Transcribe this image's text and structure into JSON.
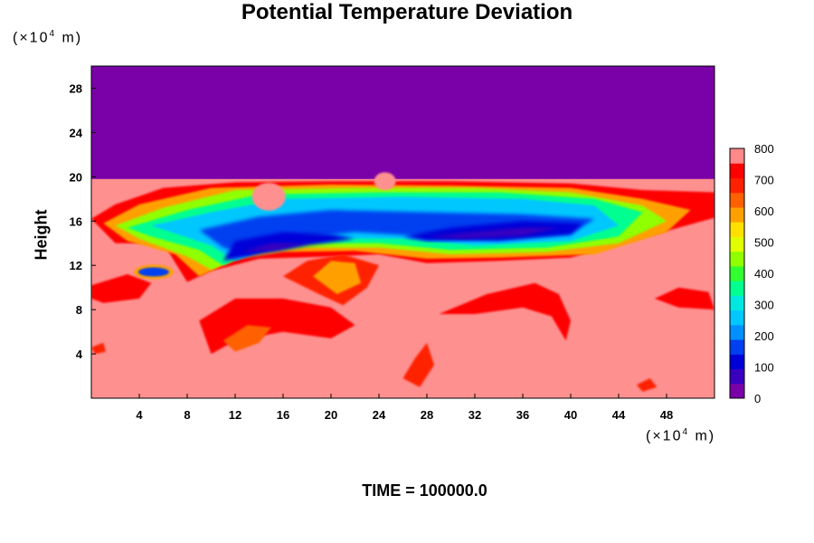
{
  "chart_data": {
    "type": "heatmap",
    "title": "Potential Temperature Deviation",
    "ylabel": "Height",
    "xlabel": "",
    "x_unit": "(×10",
    "x_unit_exp": "4",
    "x_unit_tail": " m)",
    "y_unit": "(×10",
    "y_unit_exp": "4",
    "y_unit_tail": " m)",
    "xlim": [
      0,
      52
    ],
    "ylim": [
      0,
      30
    ],
    "x_ticks": [
      4,
      8,
      12,
      16,
      20,
      24,
      28,
      32,
      36,
      40,
      44,
      48
    ],
    "y_ticks": [
      4,
      8,
      12,
      16,
      20,
      24,
      28
    ],
    "colorbar": {
      "range": [
        0,
        800
      ],
      "labels": [
        0,
        100,
        200,
        300,
        400,
        500,
        600,
        700,
        800
      ],
      "colors": [
        "#7a00a8",
        "#3a00c0",
        "#0000d8",
        "#0040f0",
        "#0090ff",
        "#00c8ff",
        "#00e8e0",
        "#00ff90",
        "#30ff30",
        "#90ff00",
        "#e0ff00",
        "#ffe000",
        "#ffa000",
        "#ff6000",
        "#ff2000",
        "#ff0000",
        "#ff8888"
      ]
    },
    "regions": {
      "top_layer_color": "#7a00a8",
      "background_color": "#ff9090",
      "top_layer_bottom": 19.8
    },
    "annotation": "TIME = 100000.0"
  }
}
